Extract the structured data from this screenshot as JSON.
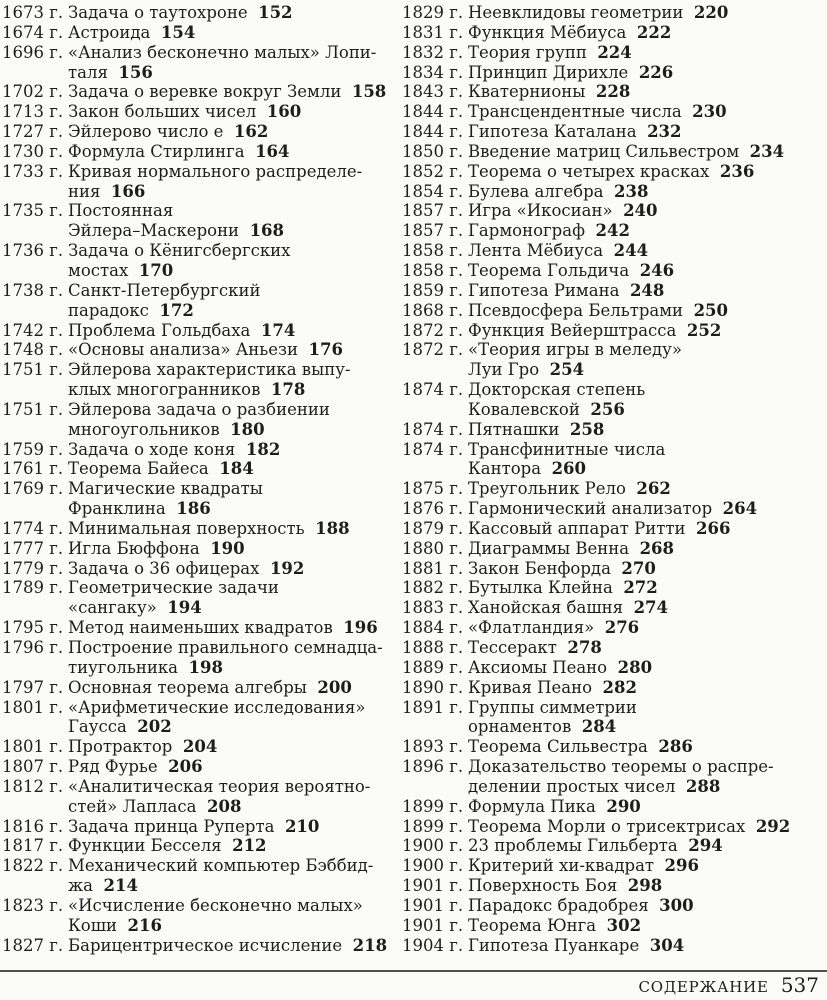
{
  "page": {
    "background": "#fbfbf8",
    "text_color": "#1d1d1b"
  },
  "footer": {
    "label": "СОДЕРЖАНИЕ",
    "page_number": "537"
  },
  "toc": {
    "columns": [
      {
        "entries": [
          {
            "year": "1673 г.",
            "lines": [
              "Задача о таутохроне"
            ],
            "page": "152"
          },
          {
            "year": "1674 г.",
            "lines": [
              "Астроида"
            ],
            "page": "154"
          },
          {
            "year": "1696 г.",
            "lines": [
              "«Анализ бесконечно малых» Лопи-",
              "таля"
            ],
            "page": "156"
          },
          {
            "year": "1702 г.",
            "lines": [
              "Задача о веревке вокруг Земли"
            ],
            "page": "158"
          },
          {
            "year": "1713 г.",
            "lines": [
              "Закон больших чисел"
            ],
            "page": "160"
          },
          {
            "year": "1727 г.",
            "lines": [
              "Эйлерово число e"
            ],
            "page": "162"
          },
          {
            "year": "1730 г.",
            "lines": [
              "Формула Стирлинга"
            ],
            "page": "164"
          },
          {
            "year": "1733 г.",
            "lines": [
              "Кривая нормального распределе-",
              "ния"
            ],
            "page": "166"
          },
          {
            "year": "1735 г.",
            "lines": [
              "Постоянная",
              "Эйлера–Маскерони"
            ],
            "page": "168"
          },
          {
            "year": "1736 г.",
            "lines": [
              "Задача о Кёнигсбергских",
              "мостах"
            ],
            "page": "170"
          },
          {
            "year": "1738 г.",
            "lines": [
              "Санкт-Петербургский",
              "парадокс"
            ],
            "page": "172"
          },
          {
            "year": "1742 г.",
            "lines": [
              "Проблема Гольдбаха"
            ],
            "page": "174"
          },
          {
            "year": "1748 г.",
            "lines": [
              "«Основы анализа» Аньези"
            ],
            "page": "176"
          },
          {
            "year": "1751 г.",
            "lines": [
              "Эйлерова характеристика выпу-",
              "клых многогранников"
            ],
            "page": "178"
          },
          {
            "year": "1751 г.",
            "lines": [
              "Эйлерова задача о разбиении",
              "многоугольников"
            ],
            "page": "180"
          },
          {
            "year": "1759 г.",
            "lines": [
              "Задача о ходе коня"
            ],
            "page": "182"
          },
          {
            "year": "1761 г.",
            "lines": [
              "Теорема Байеса"
            ],
            "page": "184"
          },
          {
            "year": "1769 г.",
            "lines": [
              "Магические квадраты",
              "Франклина"
            ],
            "page": "186"
          },
          {
            "year": "1774 г.",
            "lines": [
              "Минимальная поверхность"
            ],
            "page": "188"
          },
          {
            "year": "1777 г.",
            "lines": [
              "Игла Бюффона"
            ],
            "page": "190"
          },
          {
            "year": "1779 г.",
            "lines": [
              "Задача о 36 офицерах"
            ],
            "page": "192"
          },
          {
            "year": "1789 г.",
            "lines": [
              "Геометрические задачи",
              "«сангаку»"
            ],
            "page": "194"
          },
          {
            "year": "1795 г.",
            "lines": [
              "Метод наименьших квадратов"
            ],
            "page": "196"
          },
          {
            "year": "1796 г.",
            "lines": [
              "Построение правильного семнадца-",
              "тиугольника"
            ],
            "page": "198"
          },
          {
            "year": "1797 г.",
            "lines": [
              "Основная теорема алгебры"
            ],
            "page": "200"
          },
          {
            "year": "1801 г.",
            "lines": [
              "«Арифметические исследования»",
              "Гаусса"
            ],
            "page": "202"
          },
          {
            "year": "1801 г.",
            "lines": [
              "Протрактор"
            ],
            "page": "204"
          },
          {
            "year": "1807 г.",
            "lines": [
              "Ряд Фурье"
            ],
            "page": "206"
          },
          {
            "year": "1812 г.",
            "lines": [
              "«Аналитическая теория вероятно-",
              "стей» Лапласа"
            ],
            "page": "208"
          },
          {
            "year": "1816 г.",
            "lines": [
              "Задача принца Руперта"
            ],
            "page": "210"
          },
          {
            "year": "1817 г.",
            "lines": [
              "Функции Бесселя"
            ],
            "page": "212"
          },
          {
            "year": "1822 г.",
            "lines": [
              "Механический компьютер Бэббид-",
              "жа"
            ],
            "page": "214"
          },
          {
            "year": "1823 г.",
            "lines": [
              "«Исчисление бесконечно малых»",
              "Коши"
            ],
            "page": "216"
          },
          {
            "year": "1827 г.",
            "lines": [
              "Барицентрическое исчисление"
            ],
            "page": "218"
          }
        ]
      },
      {
        "entries": [
          {
            "year": "1829 г.",
            "lines": [
              "Неевклидовы геометрии"
            ],
            "page": "220"
          },
          {
            "year": "1831 г.",
            "lines": [
              "Функция Мёбиуса"
            ],
            "page": "222"
          },
          {
            "year": "1832 г.",
            "lines": [
              "Теория групп"
            ],
            "page": "224"
          },
          {
            "year": "1834 г.",
            "lines": [
              "Принцип Дирихле"
            ],
            "page": "226"
          },
          {
            "year": "1843 г.",
            "lines": [
              "Кватернионы"
            ],
            "page": "228"
          },
          {
            "year": "1844 г.",
            "lines": [
              "Трансцендентные числа"
            ],
            "page": "230"
          },
          {
            "year": "1844 г.",
            "lines": [
              "Гипотеза Каталана"
            ],
            "page": "232"
          },
          {
            "year": "1850 г.",
            "lines": [
              "Введение матриц Сильвестром"
            ],
            "page": "234"
          },
          {
            "year": "1852 г.",
            "lines": [
              "Теорема о четырех красках"
            ],
            "page": "236"
          },
          {
            "year": "1854 г.",
            "lines": [
              "Булева алгебра"
            ],
            "page": "238"
          },
          {
            "year": "1857 г.",
            "lines": [
              "Игра «Икосиан»"
            ],
            "page": "240"
          },
          {
            "year": "1857 г.",
            "lines": [
              "Гармонограф"
            ],
            "page": "242"
          },
          {
            "year": "1858 г.",
            "lines": [
              "Лента Мёбиуса"
            ],
            "page": "244"
          },
          {
            "year": "1858 г.",
            "lines": [
              "Теорема Гольдича"
            ],
            "page": "246"
          },
          {
            "year": "1859 г.",
            "lines": [
              "Гипотеза Римана"
            ],
            "page": "248"
          },
          {
            "year": "1868 г.",
            "lines": [
              "Псевдосфера Бельтрами"
            ],
            "page": "250"
          },
          {
            "year": "1872 г.",
            "lines": [
              "Функция Вейерштрасса"
            ],
            "page": "252"
          },
          {
            "year": "1872 г.",
            "lines": [
              "«Теория игры в меледу»",
              "Луи Гро"
            ],
            "page": "254"
          },
          {
            "year": "1874 г.",
            "lines": [
              "Докторская степень",
              "Ковалевской"
            ],
            "page": "256"
          },
          {
            "year": "1874 г.",
            "lines": [
              "Пятнашки"
            ],
            "page": "258"
          },
          {
            "year": "1874 г.",
            "lines": [
              "Трансфинитные числа",
              "Кантора"
            ],
            "page": "260"
          },
          {
            "year": "1875 г.",
            "lines": [
              "Треугольник Рело"
            ],
            "page": "262"
          },
          {
            "year": "1876 г.",
            "lines": [
              "Гармонический анализатор"
            ],
            "page": "264"
          },
          {
            "year": "1879 г.",
            "lines": [
              "Кассовый аппарат Ритти"
            ],
            "page": "266"
          },
          {
            "year": "1880 г.",
            "lines": [
              "Диаграммы Венна"
            ],
            "page": "268"
          },
          {
            "year": "1881 г.",
            "lines": [
              "Закон Бенфорда"
            ],
            "page": "270"
          },
          {
            "year": "1882 г.",
            "lines": [
              "Бутылка Клейна"
            ],
            "page": "272"
          },
          {
            "year": "1883 г.",
            "lines": [
              "Ханойская башня"
            ],
            "page": "274"
          },
          {
            "year": "1884 г.",
            "lines": [
              "«Флатландия»"
            ],
            "page": "276"
          },
          {
            "year": "1888 г.",
            "lines": [
              "Тессеракт"
            ],
            "page": "278"
          },
          {
            "year": "1889 г.",
            "lines": [
              "Аксиомы Пеано"
            ],
            "page": "280"
          },
          {
            "year": "1890 г.",
            "lines": [
              "Кривая Пеано"
            ],
            "page": "282"
          },
          {
            "year": "1891 г.",
            "lines": [
              "Группы симметрии",
              "орнаментов"
            ],
            "page": "284"
          },
          {
            "year": "1893 г.",
            "lines": [
              "Теорема Сильвестра"
            ],
            "page": "286"
          },
          {
            "year": "1896 г.",
            "lines": [
              "Доказательство теоремы о распре-",
              "делении простых чисел"
            ],
            "page": "288"
          },
          {
            "year": "1899 г.",
            "lines": [
              "Формула Пика"
            ],
            "page": "290"
          },
          {
            "year": "1899 г.",
            "lines": [
              "Теорема Морли о трисектрисах"
            ],
            "page": "292"
          },
          {
            "year": "1900 г.",
            "lines": [
              "23 проблемы Гильберта"
            ],
            "page": "294"
          },
          {
            "year": "1900 г.",
            "lines": [
              "Критерий хи-квадрат"
            ],
            "page": "296"
          },
          {
            "year": "1901 г.",
            "lines": [
              "Поверхность Боя"
            ],
            "page": "298"
          },
          {
            "year": "1901 г.",
            "lines": [
              "Парадокс брадобрея"
            ],
            "page": "300"
          },
          {
            "year": "1901 г.",
            "lines": [
              "Теорема Юнга"
            ],
            "page": "302"
          },
          {
            "year": "1904 г.",
            "lines": [
              "Гипотеза Пуанкаре"
            ],
            "page": "304"
          }
        ]
      }
    ]
  }
}
